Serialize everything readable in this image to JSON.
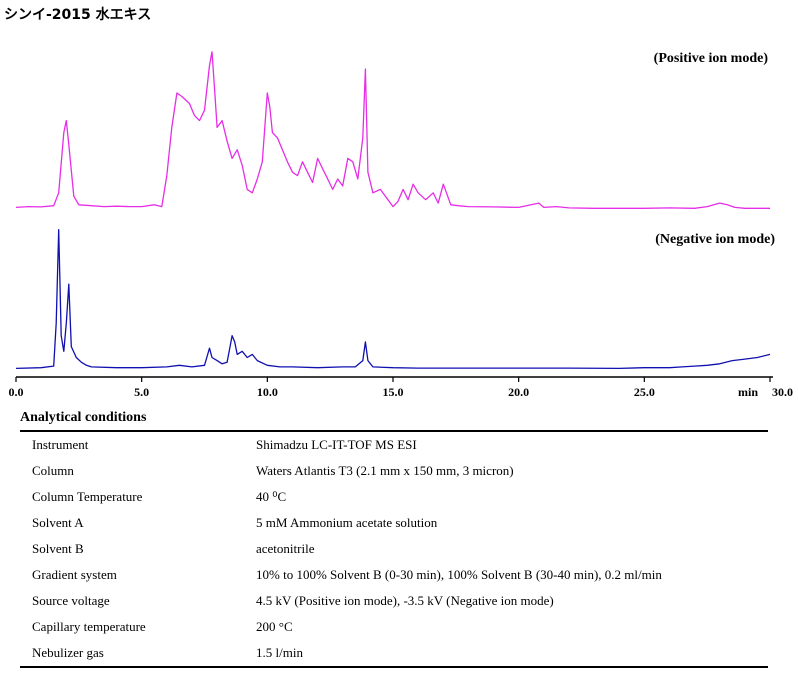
{
  "title": "シンイ-2015 水エキス",
  "chart_data": {
    "type": "line",
    "x_axis": {
      "range": [
        0,
        30
      ],
      "unit_label": "min",
      "ticks": [
        "0.0",
        "5.0",
        "10.0",
        "15.0",
        "20.0",
        "25.0",
        "30.0"
      ]
    },
    "series": [
      {
        "name": "(Positive ion mode)",
        "color": "#e62ee6",
        "x": [
          0,
          0.5,
          1.0,
          1.5,
          1.7,
          1.9,
          2.0,
          2.1,
          2.3,
          2.5,
          3.0,
          3.5,
          4.0,
          4.5,
          5.0,
          5.5,
          5.8,
          6.0,
          6.2,
          6.4,
          6.6,
          6.9,
          7.1,
          7.3,
          7.5,
          7.7,
          7.8,
          7.9,
          8.0,
          8.2,
          8.4,
          8.6,
          8.8,
          9.0,
          9.2,
          9.4,
          9.6,
          9.8,
          10.0,
          10.1,
          10.2,
          10.4,
          10.6,
          10.8,
          11.0,
          11.2,
          11.4,
          11.6,
          11.8,
          12.0,
          12.2,
          12.4,
          12.6,
          12.8,
          13.0,
          13.2,
          13.4,
          13.6,
          13.8,
          13.9,
          14.0,
          14.2,
          14.5,
          15.0,
          15.2,
          15.4,
          15.6,
          15.8,
          16.0,
          16.3,
          16.6,
          16.8,
          17.0,
          17.3,
          17.6,
          18.0,
          19.0,
          20.0,
          20.8,
          21.0,
          21.5,
          22.0,
          23.0,
          24.0,
          25.0,
          26.0,
          27.0,
          27.5,
          28.0,
          28.3,
          28.6,
          29.0,
          30.0
        ],
        "y": [
          1.5,
          2.0,
          1.8,
          2.5,
          10,
          45,
          52,
          38,
          8,
          3,
          2.5,
          2.0,
          2.2,
          2.0,
          2.0,
          3,
          2.0,
          20,
          48,
          68,
          66,
          62,
          55,
          52,
          58,
          84,
          92,
          70,
          48,
          52,
          40,
          30,
          35,
          26,
          12,
          10,
          18,
          28,
          68,
          60,
          45,
          42,
          35,
          28,
          22,
          20,
          28,
          22,
          16,
          30,
          24,
          18,
          12,
          18,
          14,
          30,
          28,
          18,
          42,
          82,
          22,
          10,
          12,
          2.0,
          5,
          12,
          6,
          15,
          10,
          6,
          10,
          4,
          15,
          3,
          2.5,
          2.0,
          1.8,
          1.5,
          4,
          1.5,
          2.0,
          1.2,
          1.0,
          1.0,
          1.0,
          1.2,
          1.0,
          2,
          4,
          3,
          1.5,
          1.0,
          1.0
        ]
      },
      {
        "name": "(Negative ion mode)",
        "color": "#1010b0",
        "x": [
          0,
          1.0,
          1.5,
          1.6,
          1.7,
          1.8,
          1.9,
          2.0,
          2.1,
          2.2,
          2.4,
          2.6,
          2.8,
          3.0,
          4.0,
          5.0,
          6.0,
          6.5,
          7.0,
          7.5,
          7.7,
          7.8,
          8.0,
          8.2,
          8.4,
          8.6,
          8.7,
          8.8,
          9.0,
          9.2,
          9.4,
          9.6,
          10.0,
          10.5,
          11.0,
          12.0,
          13.0,
          13.5,
          13.8,
          13.9,
          14.0,
          14.2,
          15.0,
          16.0,
          18.0,
          20.0,
          22.0,
          24.0,
          25.0,
          26.0,
          26.5,
          27.0,
          27.5,
          28.0,
          28.5,
          29.0,
          29.5,
          30.0
        ],
        "y": [
          1.0,
          1.5,
          2.5,
          30,
          90,
          22,
          12,
          30,
          55,
          15,
          8,
          5,
          3,
          2,
          1.5,
          1.5,
          2,
          3,
          2,
          3,
          14,
          8,
          6,
          4,
          5,
          22,
          18,
          10,
          12,
          8,
          10,
          6,
          3,
          2,
          2,
          1.5,
          2,
          2,
          6,
          18,
          6,
          2,
          1.5,
          1.2,
          1.2,
          1.2,
          1.2,
          1.0,
          1.5,
          1.5,
          2,
          2.5,
          3,
          4,
          6,
          7,
          8,
          10
        ]
      }
    ]
  },
  "conditions": {
    "title": "Analytical conditions",
    "rows": [
      {
        "label": "Instrument",
        "value": "Shimadzu LC-IT-TOF MS ESI"
      },
      {
        "label": "Column",
        "value": "Waters Atlantis T3 (2.1 mm x 150 mm, 3 micron)"
      },
      {
        "label": "Column Temperature",
        "value": "40 ⁰C"
      },
      {
        "label": "Solvent A",
        "value": "5 mM Ammonium acetate solution"
      },
      {
        "label": "Solvent B",
        "value": "acetonitrile"
      },
      {
        "label": "Gradient system",
        "value": "10% to 100% Solvent B (0-30 min), 100% Solvent B (30-40 min), 0.2 ml/min"
      },
      {
        "label": "Source voltage",
        "value": "4.5 kV (Positive ion mode), -3.5 kV (Negative ion mode)"
      },
      {
        "label": "Capillary temperature",
        "value": "200 °C"
      },
      {
        "label": "Nebulizer gas",
        "value": "1.5 l/min"
      }
    ]
  }
}
